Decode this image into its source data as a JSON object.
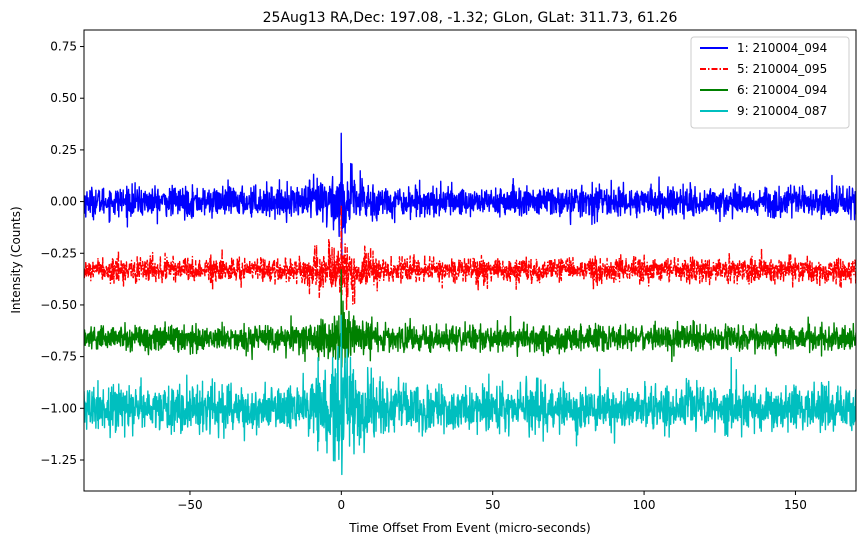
{
  "chart_data": {
    "type": "line",
    "title": "25Aug13 RA,Dec:  197.08,  -1.32; GLon, GLat:  311.73,  61.26",
    "xlabel": "Time Offset From Event (micro-seconds)",
    "ylabel": "Intensity (Counts)",
    "xlim": [
      -85,
      170
    ],
    "ylim": [
      -1.4,
      0.83
    ],
    "xticks": [
      -50,
      0,
      50,
      100,
      150
    ],
    "xtick_labels": [
      "−50",
      "0",
      "50",
      "100",
      "150"
    ],
    "yticks": [
      0.75,
      0.5,
      0.25,
      0.0,
      -0.25,
      -0.5,
      -0.75,
      -1.0,
      -1.25
    ],
    "ytick_labels": [
      "0.75",
      "0.50",
      "0.25",
      "0.00",
      "−0.25",
      "−0.50",
      "−0.75",
      "−1.00",
      "−1.25"
    ],
    "grid": false,
    "legend_position": "top-right",
    "series": [
      {
        "name": "1: 210004_094",
        "color": "#0000ff",
        "style": "solid",
        "baseline": 0.0,
        "noise_std": 0.035,
        "max": 0.33,
        "min": -0.28,
        "burst_at": 0
      },
      {
        "name": "5: 210004_095",
        "color": "#ff0000",
        "style": "dashdot",
        "baseline": -0.33,
        "noise_std": 0.03,
        "max": -0.02,
        "min": -0.45,
        "burst_at": 0
      },
      {
        "name": "6: 210004_094",
        "color": "#008000",
        "style": "solid",
        "baseline": -0.66,
        "noise_std": 0.03,
        "max": -0.33,
        "min": -0.8,
        "burst_at": 0
      },
      {
        "name": "9: 210004_087",
        "color": "#00bfbf",
        "style": "solid",
        "baseline": -1.0,
        "noise_std": 0.055,
        "max": -0.55,
        "min": -1.32,
        "burst_at": 0
      }
    ]
  }
}
